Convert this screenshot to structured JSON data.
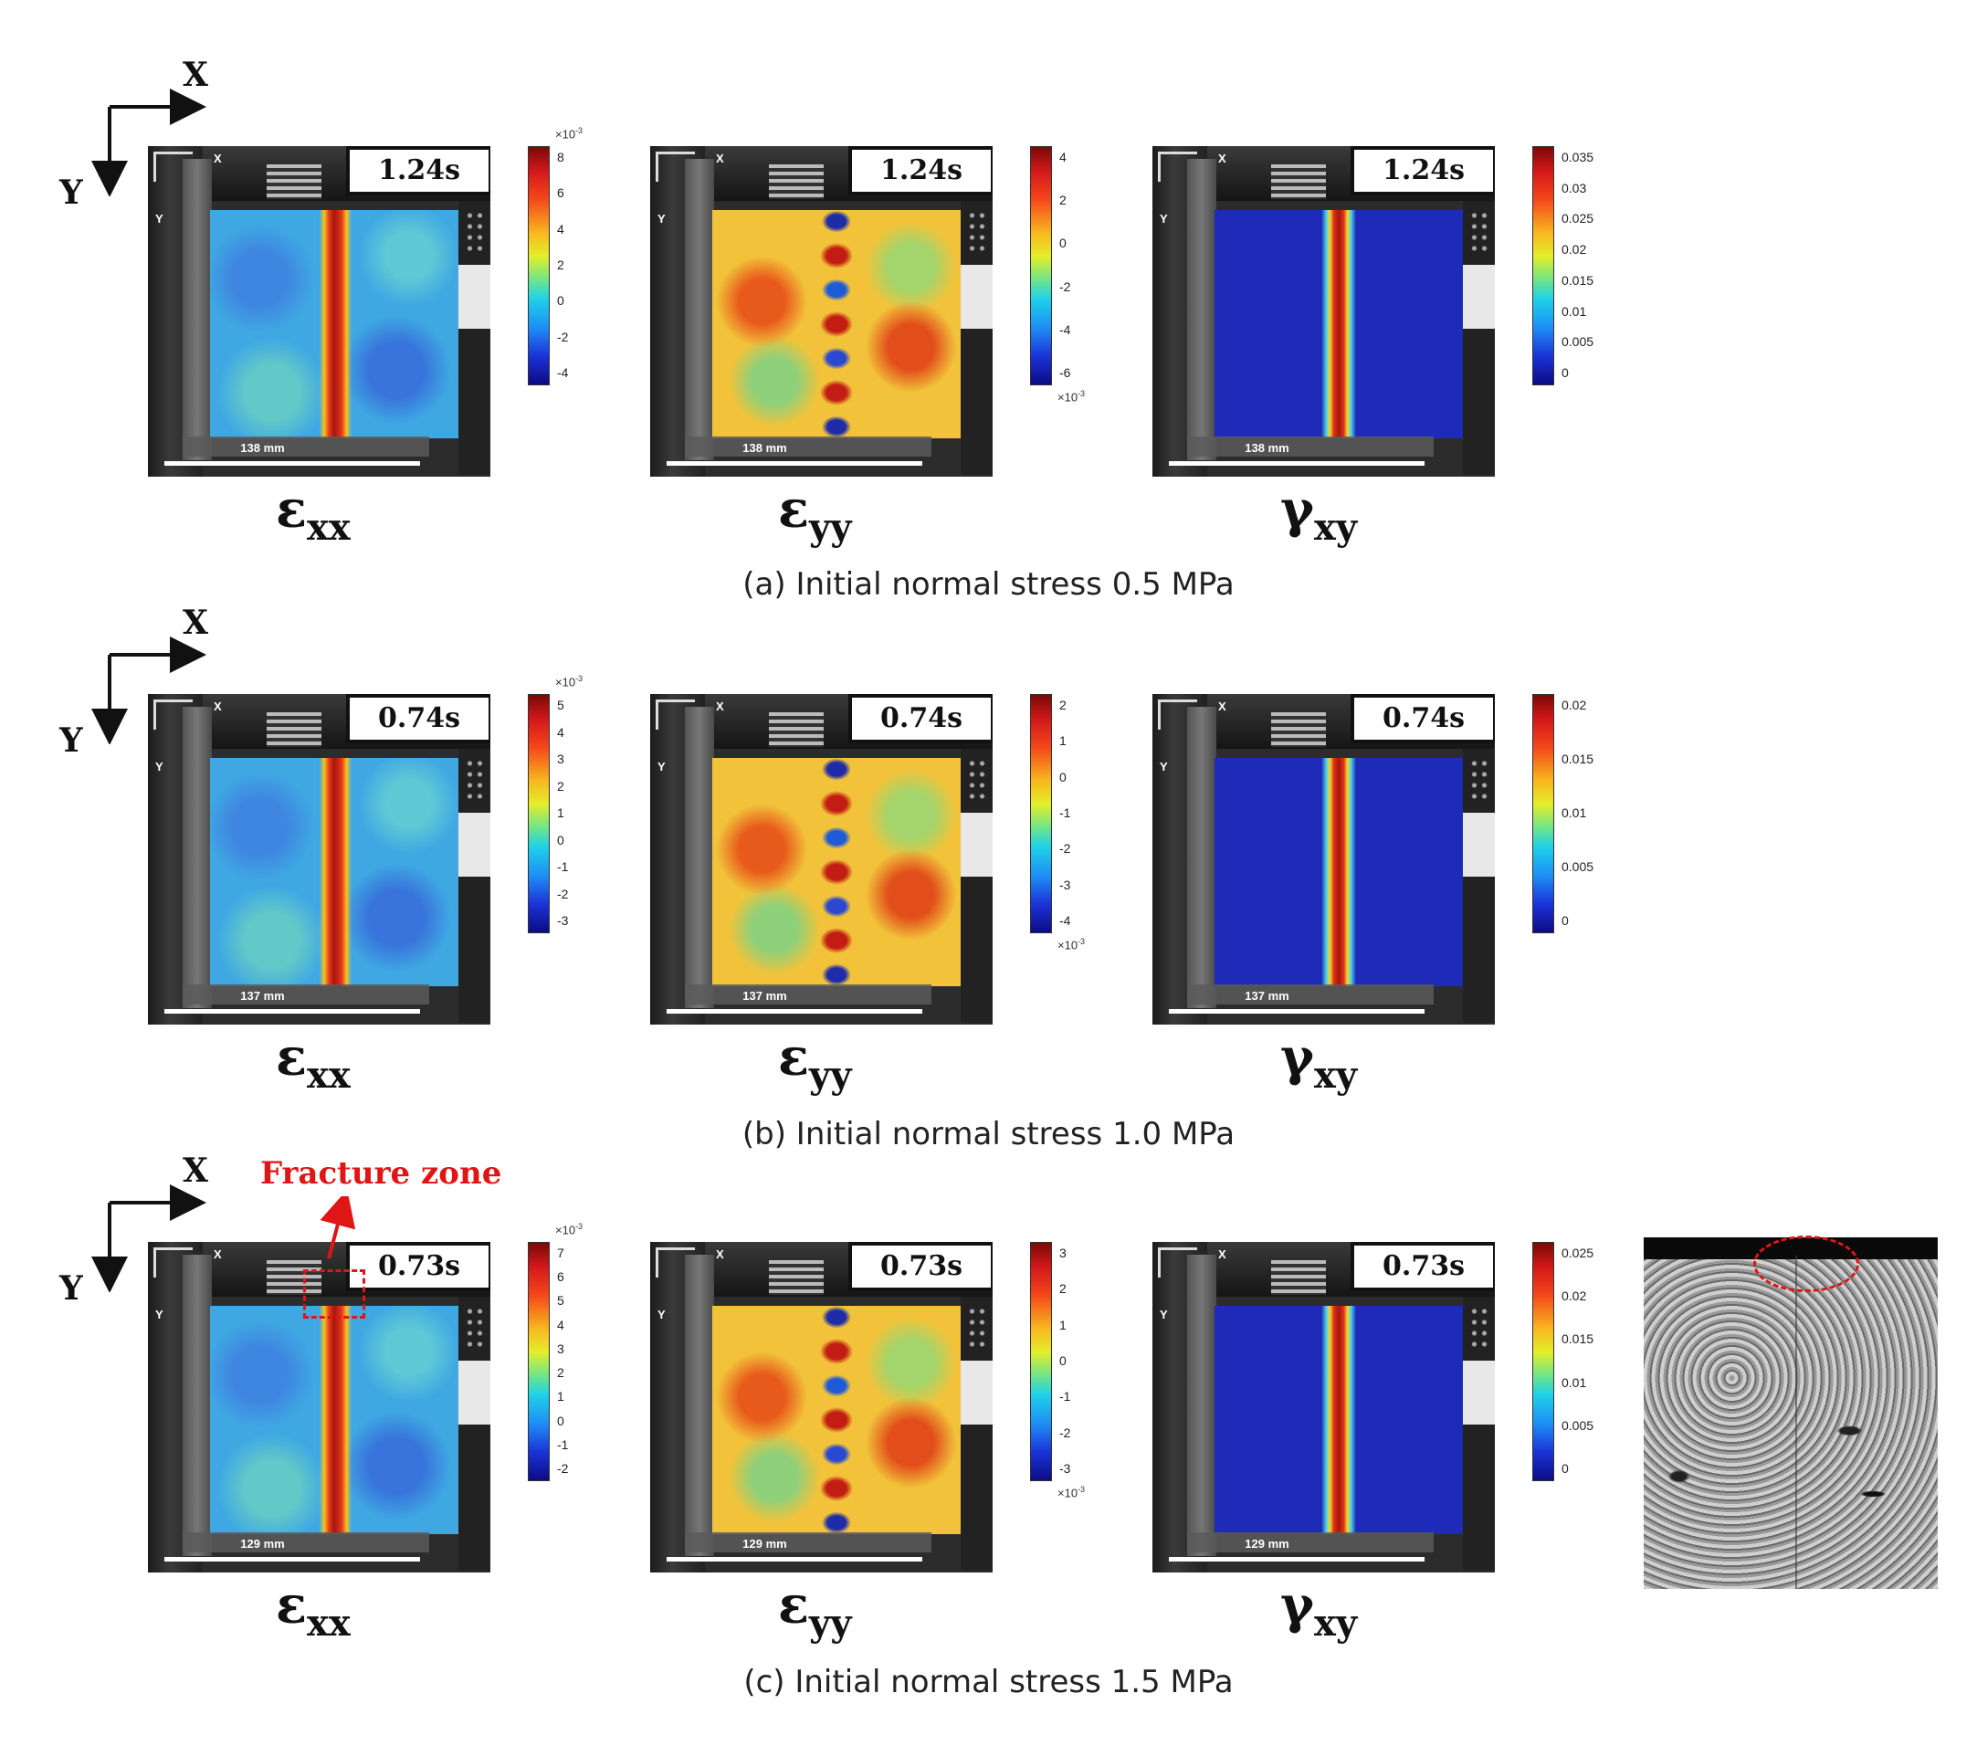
{
  "rows": [
    {
      "id": "a",
      "caption": "(a) Initial normal stress 0.5 MPa",
      "panels": [
        {
          "label_sym": "ε",
          "label_sub": "xx",
          "time": "1.24s",
          "scale": "138 mm",
          "field": "exx",
          "cbar_ticks": [
            "8",
            "6",
            "4",
            "2",
            "0",
            "-2",
            "-4"
          ],
          "cbar_multiplier": "×10",
          "cbar_exp": "-3",
          "multiplier_pos": "top"
        },
        {
          "label_sym": "ε",
          "label_sub": "yy",
          "time": "1.24s",
          "scale": "138 mm",
          "field": "eyy",
          "cbar_ticks": [
            "4",
            "2",
            "0",
            "-2",
            "-4",
            "-6"
          ],
          "cbar_multiplier": "×10",
          "cbar_exp": "-3",
          "multiplier_pos": "bottom"
        },
        {
          "label_sym": "γ",
          "label_sub": "xy",
          "time": "1.24s",
          "scale": "138 mm",
          "field": "gxy",
          "cbar_ticks": [
            "0.035",
            "0.03",
            "0.025",
            "0.02",
            "0.015",
            "0.01",
            "0.005",
            "0"
          ],
          "cbar_multiplier": "",
          "cbar_exp": "",
          "multiplier_pos": "none"
        }
      ]
    },
    {
      "id": "b",
      "caption": "(b) Initial normal stress 1.0 MPa",
      "panels": [
        {
          "label_sym": "ε",
          "label_sub": "xx",
          "time": "0.74s",
          "scale": "137 mm",
          "field": "exx",
          "cbar_ticks": [
            "5",
            "4",
            "3",
            "2",
            "1",
            "0",
            "-1",
            "-2",
            "-3"
          ],
          "cbar_multiplier": "×10",
          "cbar_exp": "-3",
          "multiplier_pos": "top"
        },
        {
          "label_sym": "ε",
          "label_sub": "yy",
          "time": "0.74s",
          "scale": "137 mm",
          "field": "eyy",
          "cbar_ticks": [
            "2",
            "1",
            "0",
            "-1",
            "-2",
            "-3",
            "-4"
          ],
          "cbar_multiplier": "×10",
          "cbar_exp": "-3",
          "multiplier_pos": "bottom"
        },
        {
          "label_sym": "γ",
          "label_sub": "xy",
          "time": "0.74s",
          "scale": "137 mm",
          "field": "gxy",
          "cbar_ticks": [
            "0.02",
            "0.015",
            "0.01",
            "0.005",
            "0"
          ],
          "cbar_multiplier": "",
          "cbar_exp": "",
          "multiplier_pos": "none"
        }
      ]
    },
    {
      "id": "c",
      "caption": "(c) Initial normal stress 1.5 MPa",
      "panels": [
        {
          "label_sym": "ε",
          "label_sub": "xx",
          "time": "0.73s",
          "scale": "129 mm",
          "field": "exx",
          "cbar_ticks": [
            "7",
            "6",
            "5",
            "4",
            "3",
            "2",
            "1",
            "0",
            "-1",
            "-2"
          ],
          "cbar_multiplier": "×10",
          "cbar_exp": "-3",
          "multiplier_pos": "top"
        },
        {
          "label_sym": "ε",
          "label_sub": "yy",
          "time": "0.73s",
          "scale": "129 mm",
          "field": "eyy",
          "cbar_ticks": [
            "3",
            "2",
            "1",
            "0",
            "-1",
            "-2",
            "-3"
          ],
          "cbar_multiplier": "×10",
          "cbar_exp": "-3",
          "multiplier_pos": "bottom"
        },
        {
          "label_sym": "γ",
          "label_sub": "xy",
          "time": "0.73s",
          "scale": "129 mm",
          "field": "gxy",
          "cbar_ticks": [
            "0.025",
            "0.02",
            "0.015",
            "0.01",
            "0.005",
            "0"
          ],
          "cbar_multiplier": "",
          "cbar_exp": "",
          "multiplier_pos": "none"
        }
      ]
    }
  ],
  "axes": {
    "x_label": "X",
    "y_label": "Y"
  },
  "panel_axis_labels": {
    "x": "X",
    "y": "Y"
  },
  "fracture_zone_label": "Fracture zone",
  "colors": {
    "accent_red": "#e01515"
  }
}
